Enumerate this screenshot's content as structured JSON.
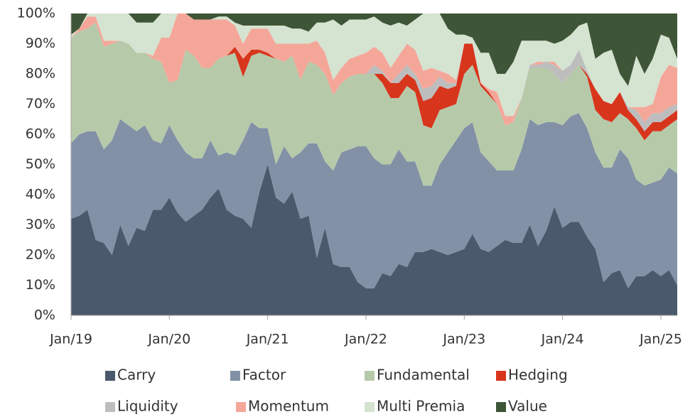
{
  "chart_data": {
    "type": "stacked_area",
    "categories": [
      "Jan/19",
      null,
      null,
      null,
      null,
      null,
      null,
      null,
      null,
      null,
      null,
      null,
      "Jan/20",
      null,
      null,
      null,
      null,
      null,
      null,
      null,
      null,
      null,
      null,
      null,
      "Jan/21",
      null,
      null,
      null,
      null,
      null,
      null,
      null,
      null,
      null,
      null,
      null,
      "Jan/22",
      null,
      null,
      null,
      null,
      null,
      null,
      null,
      null,
      null,
      null,
      null,
      "Jan/23",
      null,
      null,
      null,
      null,
      null,
      null,
      null,
      null,
      null,
      null,
      null,
      "Jan/24",
      null,
      null,
      null,
      null,
      null,
      null,
      null,
      null,
      null,
      null,
      null,
      "Jan/25",
      null,
      null
    ],
    "ylim": [
      0,
      100
    ],
    "yticks": [
      {
        "value": 0,
        "label": "0%"
      },
      {
        "value": 10,
        "label": "10%"
      },
      {
        "value": 20,
        "label": "20%"
      },
      {
        "value": 30,
        "label": "30%"
      },
      {
        "value": 40,
        "label": "40%"
      },
      {
        "value": 50,
        "label": "50%"
      },
      {
        "value": 60,
        "label": "60%"
      },
      {
        "value": 70,
        "label": "70%"
      },
      {
        "value": 80,
        "label": "80%"
      },
      {
        "value": 90,
        "label": "90%"
      },
      {
        "value": 100,
        "label": "100%"
      }
    ],
    "grid": false,
    "legend": "bottom",
    "series": [
      {
        "name": "Carry",
        "color": "#4b596c",
        "values": [
          32,
          33,
          35,
          25,
          24,
          20,
          30,
          23,
          29,
          28,
          35,
          35,
          39,
          34,
          31,
          33,
          35,
          39,
          42,
          35,
          33,
          32,
          29,
          41,
          50,
          39,
          37,
          41,
          32,
          33,
          19,
          29,
          17,
          16,
          16,
          11,
          9,
          9,
          14,
          13,
          17,
          16,
          21,
          21,
          22,
          21,
          20,
          21,
          22,
          27,
          22,
          21,
          23,
          25,
          24,
          24,
          30,
          23,
          28,
          36,
          29,
          31,
          31,
          26,
          22,
          11,
          14,
          15,
          9,
          13,
          13,
          15,
          13,
          15,
          10
        ]
      },
      {
        "name": "Factor",
        "color": "#8391a6",
        "values": [
          25,
          27,
          26,
          36,
          31,
          38,
          35,
          40,
          32,
          35,
          23,
          22,
          24,
          24,
          23,
          19,
          17,
          19,
          11,
          19,
          20,
          26,
          35,
          21,
          12,
          11,
          19,
          11,
          22,
          24,
          38,
          22,
          31,
          38,
          39,
          45,
          47,
          43,
          36,
          37,
          38,
          35,
          30,
          22,
          21,
          29,
          34,
          37,
          40,
          37,
          32,
          30,
          25,
          23,
          24,
          31,
          35,
          40,
          36,
          28,
          34,
          35,
          36,
          36,
          32,
          38,
          35,
          40,
          43,
          32,
          30,
          29,
          32,
          34,
          37
        ]
      },
      {
        "name": "Fundamental",
        "color": "#b6caaa",
        "values": [
          35,
          34,
          34,
          36,
          34,
          32,
          26,
          27,
          26,
          24,
          27,
          27,
          14,
          20,
          34,
          34,
          30,
          24,
          32,
          32,
          34,
          21,
          22,
          25,
          24,
          35,
          28,
          34,
          24,
          27,
          26,
          29,
          25,
          23,
          24,
          24,
          24,
          28,
          27,
          22,
          17,
          25,
          23,
          20,
          19,
          18,
          15,
          12,
          18,
          19,
          22,
          22,
          22,
          15,
          16,
          17,
          17,
          19,
          18,
          16,
          14,
          14,
          16,
          17,
          14,
          16,
          15,
          12,
          13,
          17,
          15,
          17,
          16,
          14,
          18
        ]
      },
      {
        "name": "Hedging",
        "color": "#d8351d",
        "values": [
          0,
          0,
          0,
          0,
          0,
          0,
          0,
          0,
          0,
          0,
          0,
          0,
          0,
          0,
          0,
          0,
          0,
          0,
          0,
          0,
          2,
          6,
          2,
          1,
          1,
          0,
          0,
          0,
          0,
          0,
          0,
          0,
          0,
          0,
          0,
          0,
          0,
          0,
          3,
          5,
          5,
          4,
          4,
          8,
          10,
          8,
          6,
          6,
          10,
          7,
          1,
          1,
          0,
          0,
          0,
          0,
          0,
          0,
          0,
          0,
          0,
          0,
          0,
          1,
          7,
          6,
          6,
          7,
          3,
          3,
          3,
          3,
          3,
          3,
          3
        ]
      },
      {
        "name": "Liquidity",
        "color": "#bdbdbd",
        "values": [
          0,
          0,
          0,
          0,
          0,
          0,
          0,
          0,
          0,
          0,
          0,
          0,
          0,
          0,
          0,
          0,
          0,
          0,
          0,
          0,
          0,
          0,
          0,
          0,
          0,
          0,
          0,
          0,
          0,
          0,
          0,
          0,
          0,
          0,
          0,
          0,
          0,
          3,
          1,
          0,
          3,
          3,
          2,
          4,
          4,
          3,
          2,
          1,
          0,
          0,
          0,
          0,
          0,
          0,
          0,
          0,
          1,
          1,
          2,
          3,
          4,
          3,
          5,
          1,
          0,
          0,
          0,
          0,
          1,
          3,
          3,
          3,
          3,
          3,
          2
        ]
      },
      {
        "name": "Momentum",
        "color": "#f4a799",
        "values": [
          0,
          1,
          4,
          2,
          2,
          1,
          0,
          0,
          0,
          0,
          1,
          8,
          15,
          22,
          12,
          12,
          16,
          16,
          13,
          12,
          7,
          5,
          7,
          7,
          8,
          5,
          6,
          4,
          12,
          6,
          8,
          7,
          5,
          5,
          6,
          6,
          7,
          6,
          6,
          5,
          6,
          7,
          8,
          6,
          6,
          2,
          3,
          1,
          0,
          0,
          0,
          1,
          4,
          3,
          2,
          0,
          0,
          1,
          0,
          1,
          0,
          0,
          0,
          0,
          0,
          0,
          0,
          0,
          0,
          1,
          5,
          3,
          12,
          14,
          12
        ]
      },
      {
        "name": "Multi Premia",
        "color": "#d5e3d1",
        "values": [
          1,
          0,
          1,
          1,
          9,
          9,
          9,
          10,
          10,
          10,
          11,
          8,
          8,
          0,
          0,
          0,
          0,
          0,
          1,
          1,
          1,
          6,
          1,
          1,
          1,
          6,
          6,
          5,
          5,
          4,
          6,
          10,
          20,
          14,
          13,
          12,
          11,
          10,
          10,
          14,
          11,
          6,
          10,
          19,
          18,
          19,
          15,
          15,
          3,
          2,
          10,
          12,
          6,
          14,
          18,
          19,
          8,
          7,
          7,
          6,
          10,
          10,
          8,
          16,
          10,
          16,
          18,
          6,
          7,
          17,
          11,
          15,
          14,
          9,
          3
        ]
      },
      {
        "name": "Value",
        "color": "#3e5637",
        "values": [
          7,
          5,
          0,
          0,
          0,
          0,
          0,
          0,
          3,
          3,
          3,
          0,
          0,
          0,
          0,
          2,
          2,
          2,
          1,
          1,
          3,
          4,
          4,
          4,
          4,
          4,
          4,
          5,
          5,
          6,
          3,
          3,
          2,
          4,
          2,
          2,
          2,
          1,
          3,
          4,
          3,
          4,
          2,
          0,
          0,
          0,
          5,
          7,
          7,
          8,
          13,
          13,
          20,
          20,
          16,
          9,
          9,
          9,
          9,
          10,
          9,
          7,
          4,
          3,
          15,
          13,
          12,
          20,
          24,
          14,
          20,
          15,
          7,
          8,
          15
        ]
      }
    ]
  }
}
